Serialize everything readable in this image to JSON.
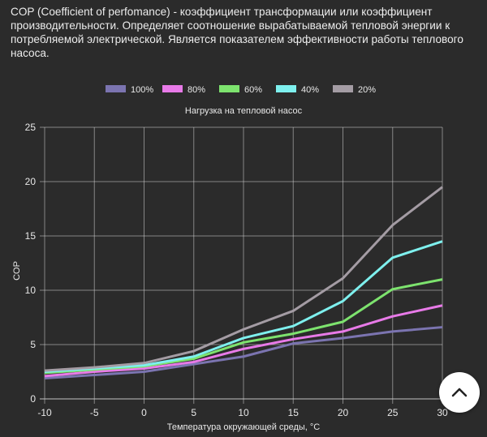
{
  "intro_text": "COP (Coefficient of perfomance) - коэффициент трансформации или коэффициент производительности. Определяет соотношение вырабатываемой тепловой энергии к потребляемой электрической. Является показателем эффективности работы теплового насоса.",
  "scroll_top": {
    "icon": "chevron-up-icon",
    "color": "#222222"
  },
  "chart_data": {
    "type": "line",
    "title": "Нагрузка на тепловой насос",
    "xlabel": "Температура окружающей среды, °С",
    "ylabel": "COP",
    "x": [
      -10,
      -5,
      0,
      5,
      10,
      15,
      20,
      25,
      30
    ],
    "xlim": [
      -10,
      30
    ],
    "ylim": [
      0,
      25
    ],
    "yticks": [
      0,
      5,
      10,
      15,
      20,
      25
    ],
    "grid": true,
    "legend_position": "top",
    "series": [
      {
        "name": "100%",
        "color": "#7b74b0",
        "values": [
          1.9,
          2.2,
          2.5,
          3.2,
          3.9,
          5.1,
          5.6,
          6.2,
          6.6
        ]
      },
      {
        "name": "80%",
        "color": "#e87ae8",
        "values": [
          2.1,
          2.5,
          2.8,
          3.4,
          4.6,
          5.5,
          6.2,
          7.6,
          8.6
        ]
      },
      {
        "name": "60%",
        "color": "#7de36e",
        "values": [
          2.4,
          2.7,
          3.0,
          3.7,
          5.2,
          6.0,
          7.1,
          10.1,
          11.0
        ]
      },
      {
        "name": "40%",
        "color": "#7ef0ee",
        "values": [
          2.5,
          2.8,
          3.1,
          3.9,
          5.6,
          6.7,
          9.0,
          13.0,
          14.5
        ]
      },
      {
        "name": "20%",
        "color": "#a49ca4",
        "values": [
          2.6,
          2.9,
          3.3,
          4.4,
          6.4,
          8.1,
          11.1,
          16.0,
          19.5
        ]
      }
    ]
  }
}
